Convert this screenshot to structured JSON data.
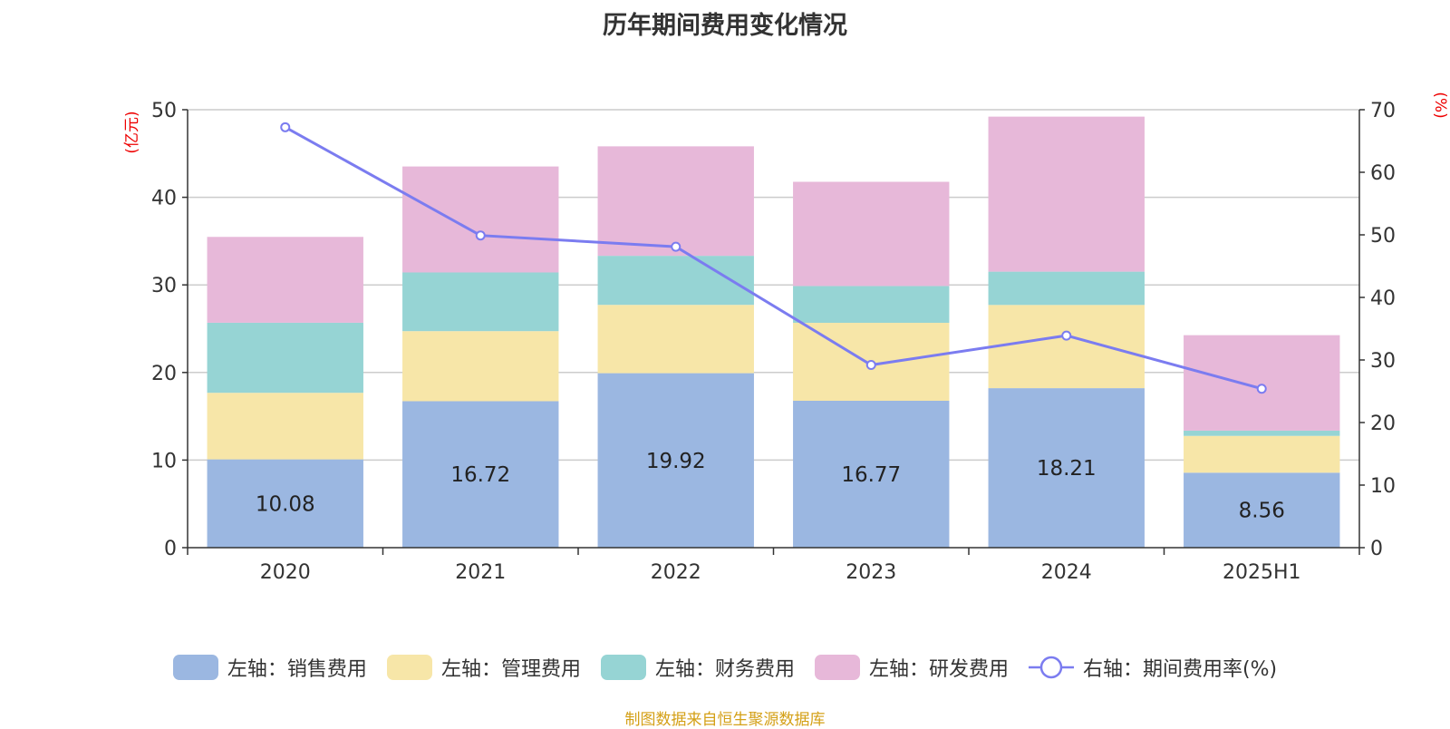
{
  "chart_data": {
    "type": "bar",
    "title": "历年期间费用变化情况",
    "categories": [
      "2020",
      "2021",
      "2022",
      "2023",
      "2024",
      "2025H1"
    ],
    "y_left": {
      "label": "(亿元)",
      "ylim": [
        0,
        50
      ],
      "ticks": [
        0,
        10,
        20,
        30,
        40,
        50
      ]
    },
    "y_right": {
      "label": "(%)",
      "ylim": [
        0,
        70
      ],
      "ticks": [
        0,
        10,
        20,
        30,
        40,
        50,
        60,
        70
      ]
    },
    "grid": true,
    "legend_position": "bottom",
    "series": [
      {
        "name": "左轴：销售费用",
        "axis": "left",
        "type": "bar",
        "color": "#9bb7e1",
        "values": [
          10.08,
          16.72,
          19.92,
          16.77,
          18.21,
          8.56
        ],
        "data_labels": [
          "10.08",
          "16.72",
          "19.92",
          "16.77",
          "18.21",
          "8.56"
        ]
      },
      {
        "name": "左轴：管理费用",
        "axis": "left",
        "type": "bar",
        "color": "#f7e6a8",
        "values": [
          7.6,
          8.0,
          7.8,
          8.9,
          9.5,
          4.2
        ]
      },
      {
        "name": "左轴：财务费用",
        "axis": "left",
        "type": "bar",
        "color": "#96d4d4",
        "values": [
          8.0,
          6.7,
          5.6,
          4.2,
          3.8,
          0.6
        ]
      },
      {
        "name": "左轴：研发费用",
        "axis": "left",
        "type": "bar",
        "color": "#e7b8d9",
        "values": [
          9.8,
          12.1,
          12.5,
          11.9,
          17.7,
          10.9
        ]
      },
      {
        "name": "右轴：期间费用率(%)",
        "axis": "right",
        "type": "line",
        "color": "#7b7cf0",
        "values": [
          67.2,
          49.9,
          48.1,
          29.2,
          33.9,
          25.4
        ]
      }
    ]
  },
  "footer": {
    "source": "制图数据来自恒生聚源数据库"
  }
}
